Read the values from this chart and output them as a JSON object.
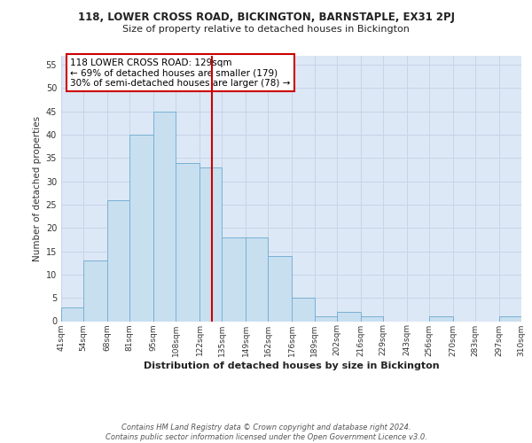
{
  "title": "118, LOWER CROSS ROAD, BICKINGTON, BARNSTAPLE, EX31 2PJ",
  "subtitle": "Size of property relative to detached houses in Bickington",
  "xlabel": "Distribution of detached houses by size in Bickington",
  "ylabel": "Number of detached properties",
  "bin_edges": [
    41,
    54,
    68,
    81,
    95,
    108,
    122,
    135,
    149,
    162,
    176,
    189,
    202,
    216,
    229,
    243,
    256,
    270,
    283,
    297,
    310
  ],
  "bin_counts": [
    3,
    13,
    26,
    40,
    45,
    34,
    33,
    18,
    18,
    14,
    5,
    1,
    2,
    1,
    0,
    0,
    1,
    0,
    0,
    1
  ],
  "bar_color": "#c8dff0",
  "bar_edgecolor": "#7ab0d4",
  "vline_x": 129,
  "vline_color": "#cc0000",
  "annotation_text": "118 LOWER CROSS ROAD: 129sqm\n← 69% of detached houses are smaller (179)\n30% of semi-detached houses are larger (78) →",
  "annotation_box_color": "#ffffff",
  "annotation_box_edgecolor": "#cc0000",
  "ylim": [
    0,
    57
  ],
  "yticks": [
    0,
    5,
    10,
    15,
    20,
    25,
    30,
    35,
    40,
    45,
    50,
    55
  ],
  "grid_color": "#c8d4e8",
  "background_color": "#dce8f5",
  "footer_text": "Contains HM Land Registry data © Crown copyright and database right 2024.\nContains public sector information licensed under the Open Government Licence v3.0.",
  "tick_labels": [
    "41sqm",
    "54sqm",
    "68sqm",
    "81sqm",
    "95sqm",
    "108sqm",
    "122sqm",
    "135sqm",
    "149sqm",
    "162sqm",
    "176sqm",
    "189sqm",
    "202sqm",
    "216sqm",
    "229sqm",
    "243sqm",
    "256sqm",
    "270sqm",
    "283sqm",
    "297sqm",
    "310sqm"
  ]
}
